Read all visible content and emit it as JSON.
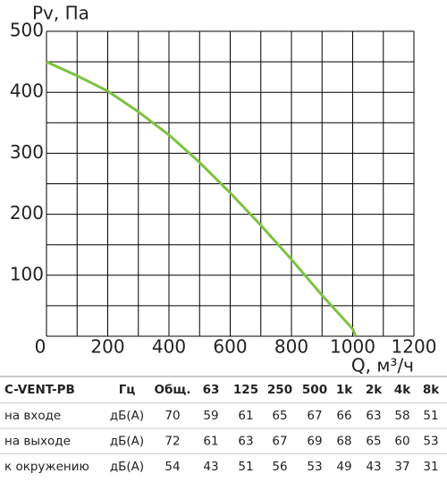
{
  "chart_data": {
    "type": "line",
    "y_label": "Pv, Па",
    "x_label": "Q, м³/ч",
    "x": [
      0,
      100,
      200,
      300,
      400,
      500,
      600,
      700,
      800,
      900,
      1000,
      1010
    ],
    "values": [
      450,
      427,
      402,
      368,
      330,
      285,
      235,
      182,
      126,
      67,
      12,
      0
    ],
    "color": "#7dc242",
    "xlim": [
      0,
      1200
    ],
    "ylim": [
      0,
      500
    ],
    "xticks": [
      0,
      200,
      400,
      600,
      800,
      1000,
      1200
    ],
    "yticks": [
      100,
      200,
      300,
      400,
      500
    ],
    "xgrid": [
      0,
      100,
      200,
      300,
      400,
      500,
      600,
      700,
      800,
      900,
      1000,
      1100,
      1200
    ],
    "ygrid": [
      0,
      50,
      100,
      150,
      200,
      250,
      300,
      350,
      400,
      450,
      500
    ]
  },
  "table": {
    "header": [
      "C-VENT-PB",
      "Гц",
      "Общ.",
      "63",
      "125",
      "250",
      "500",
      "1k",
      "2k",
      "4k",
      "8k"
    ],
    "rows": [
      [
        "на входе",
        "дБ(А)",
        70,
        59,
        61,
        65,
        67,
        66,
        63,
        58,
        51
      ],
      [
        "на выходе",
        "дБ(А)",
        72,
        61,
        63,
        67,
        69,
        68,
        65,
        60,
        53
      ],
      [
        "к окружению",
        "дБ(А)",
        54,
        43,
        51,
        56,
        53,
        49,
        43,
        37,
        31
      ]
    ]
  }
}
